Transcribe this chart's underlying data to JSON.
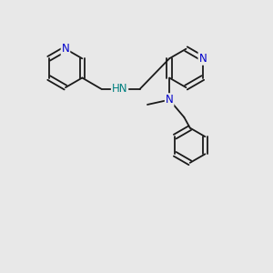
{
  "background_color": "#e8e8e8",
  "atom_color_N": "#0000cc",
  "atom_color_NH": "#008080",
  "bond_color": "#1a1a1a",
  "figsize": [
    3.0,
    3.0
  ],
  "dpi": 100,
  "xlim": [
    0,
    10
  ],
  "ylim": [
    0,
    10
  ]
}
